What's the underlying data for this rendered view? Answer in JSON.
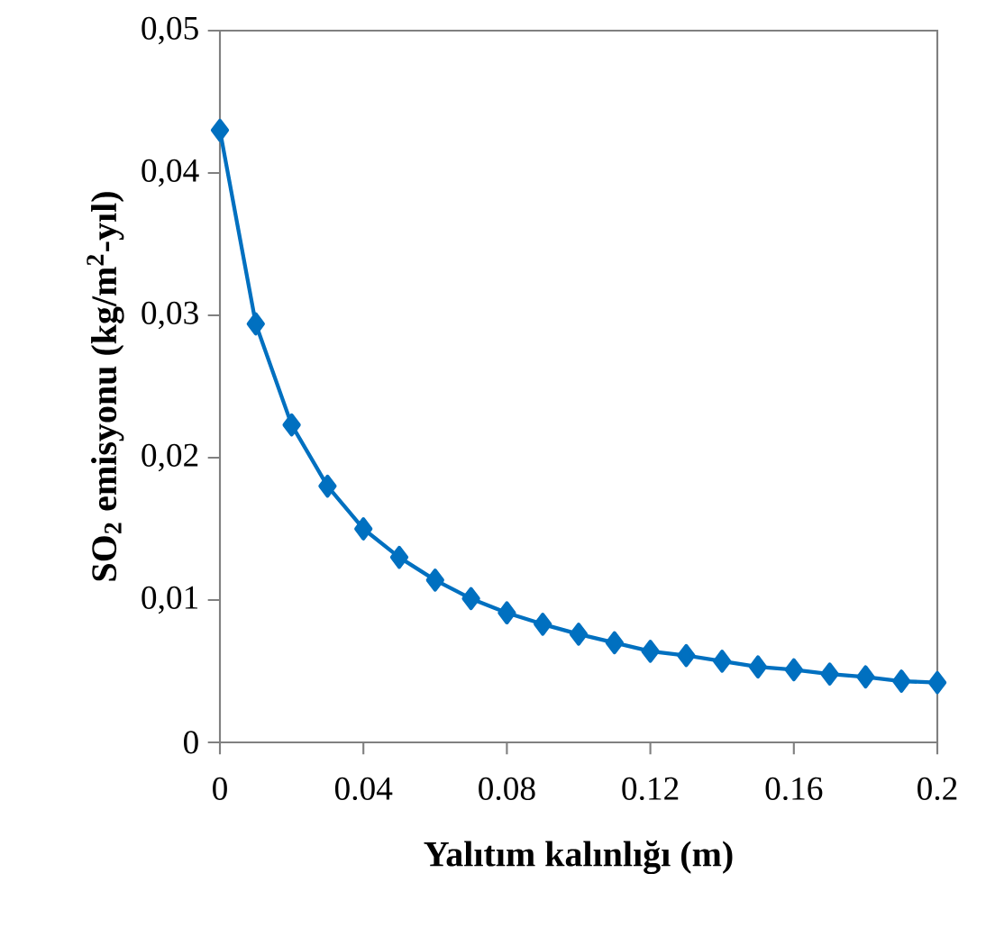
{
  "chart_data": {
    "type": "line",
    "xlabel": "Yalıtım kalınlığı (m)",
    "ylabel": "SO$_{2}$ emisyonu (kg/m$^{2}$-yıl)",
    "x": [
      0,
      0.01,
      0.02,
      0.03,
      0.04,
      0.05,
      0.06,
      0.07,
      0.08,
      0.09,
      0.1,
      0.11,
      0.12,
      0.13,
      0.14,
      0.15,
      0.16,
      0.17,
      0.18,
      0.19,
      0.2
    ],
    "series": [
      {
        "color": "#0070c0",
        "values": [
          0.043,
          0.0294,
          0.0223,
          0.018,
          0.015,
          0.013,
          0.0114,
          0.0101,
          0.0091,
          0.0083,
          0.0076,
          0.007,
          0.0064,
          0.0061,
          0.0057,
          0.0053,
          0.0051,
          0.0048,
          0.0046,
          0.0043,
          0.0042
        ]
      }
    ],
    "xlim": [
      0,
      0.2
    ],
    "ylim": [
      0,
      0.05
    ],
    "xticks": [
      0,
      0.04,
      0.08,
      0.12,
      0.16,
      0.2
    ],
    "yticks": [
      0,
      {
        "value": 0.01,
        "label": "0,01"
      },
      {
        "value": 0.02,
        "label": "0,02"
      },
      {
        "value": 0.03,
        "label": "0,03"
      },
      {
        "value": 0.04,
        "label": "0,04"
      },
      {
        "value": 0.05,
        "label": "0,05"
      }
    ],
    "marker": "diamond",
    "line_style": "solid"
  }
}
